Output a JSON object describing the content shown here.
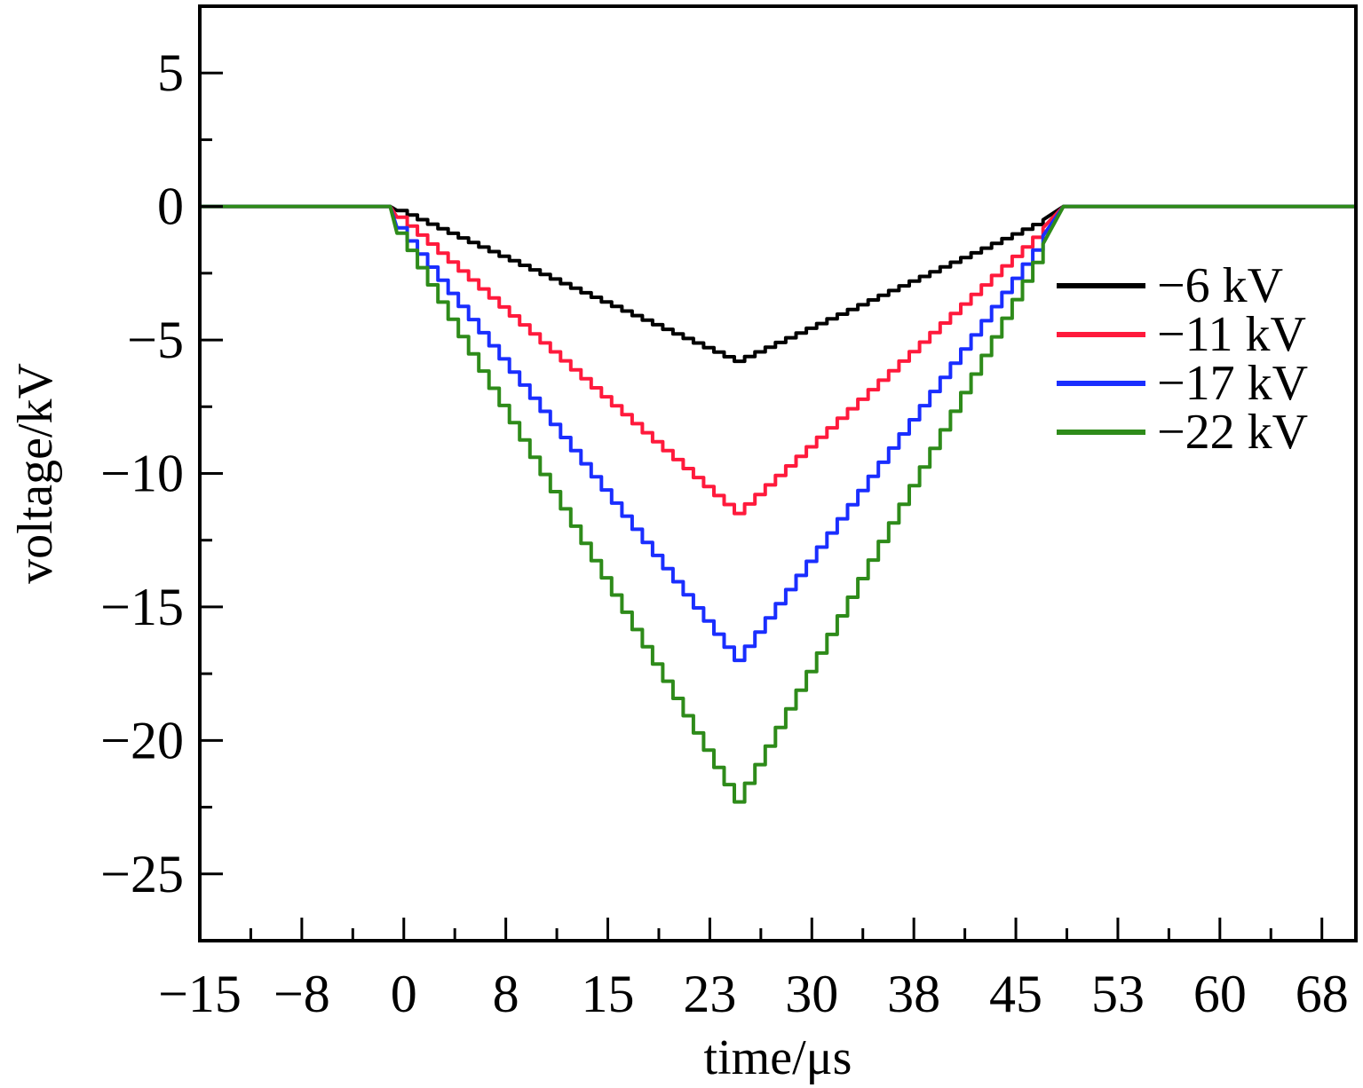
{
  "chart_data": {
    "type": "line",
    "title": "",
    "xlabel": "time/μs",
    "ylabel": "voltage/kV",
    "xlim": [
      -15,
      70
    ],
    "ylim": [
      -27.5,
      7.5
    ],
    "x_ticks": [
      -15,
      -7.5,
      0,
      7.5,
      15,
      22.5,
      30,
      37.5,
      45,
      52.5,
      60,
      67.5
    ],
    "x_tick_labels": [
      "−15",
      "−8",
      "0",
      "8",
      "15",
      "23",
      "30",
      "38",
      "45",
      "53",
      "60",
      "68"
    ],
    "y_ticks": [
      5,
      0,
      -5,
      -10,
      -15,
      -20,
      -25
    ],
    "y_tick_labels": [
      "5",
      "0",
      "−5",
      "−10",
      "−15",
      "−20",
      "−25"
    ],
    "grid": false,
    "legend_position": "right",
    "series": [
      {
        "name": "−6 kV",
        "color": "#000000",
        "x": [
          -15,
          -1,
          -0.5,
          24.3,
          47.0,
          48.5,
          70
        ],
        "y": [
          0,
          0,
          -0.15,
          -5.8,
          -0.5,
          0,
          0
        ]
      },
      {
        "name": "−11 kV",
        "color": "#ff1a3c",
        "x": [
          -15,
          -1,
          -0.5,
          24.3,
          47.0,
          48.5,
          70
        ],
        "y": [
          0,
          0,
          -0.4,
          -11.5,
          -0.8,
          0,
          0
        ]
      },
      {
        "name": "−17 kV",
        "color": "#1a2eff",
        "x": [
          -15,
          -1,
          -0.5,
          24.3,
          47.0,
          48.5,
          70
        ],
        "y": [
          0,
          0,
          -0.8,
          -17.0,
          -1.1,
          0,
          0
        ]
      },
      {
        "name": "−22 kV",
        "color": "#2e8b1a",
        "x": [
          -15,
          -1,
          -0.5,
          24.3,
          47.0,
          48.5,
          70
        ],
        "y": [
          0,
          0,
          -1.0,
          -22.3,
          -1.4,
          0,
          0
        ]
      }
    ]
  }
}
